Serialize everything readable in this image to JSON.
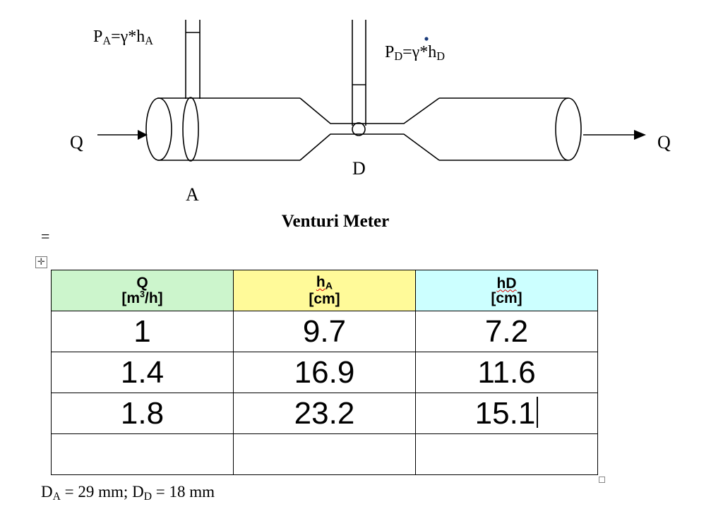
{
  "diagram": {
    "pa_label": {
      "P": "P",
      "sub": "A",
      "rest": "=γ*h",
      "sub2": "A"
    },
    "pd_label": {
      "P": "P",
      "sub": "D",
      "rest": "=γ*h",
      "sub2": "D"
    },
    "q_left": "Q",
    "q_right": "Q",
    "label_a": "A",
    "label_d": "D",
    "caption": "Venturi Meter"
  },
  "eq_mark": "=",
  "move_handle_glyph": "✛",
  "table": {
    "headers": [
      {
        "line1": "Q",
        "line2_pre": "[m",
        "line2_sup": "3",
        "line2_post": "/h]"
      },
      {
        "line1_main": "h",
        "line1_sub": "A",
        "line2": "[cm]"
      },
      {
        "line1": "hD",
        "line2": "[cm]"
      }
    ],
    "rows": [
      [
        "1",
        "9.7",
        "7.2"
      ],
      [
        "1.4",
        "16.9",
        "11.6"
      ],
      [
        "1.8",
        "23.2",
        "15.1"
      ],
      [
        "",
        "",
        ""
      ]
    ]
  },
  "footnote": {
    "da": "D",
    "da_sub": "A",
    "da_val": " = 29 mm; D",
    "dd_sub": "D",
    "dd_val": " = 18 mm"
  },
  "colors": {
    "q_header": "#ccf5cc",
    "ha_header": "#fffa99",
    "hd_header": "#ccffff"
  }
}
